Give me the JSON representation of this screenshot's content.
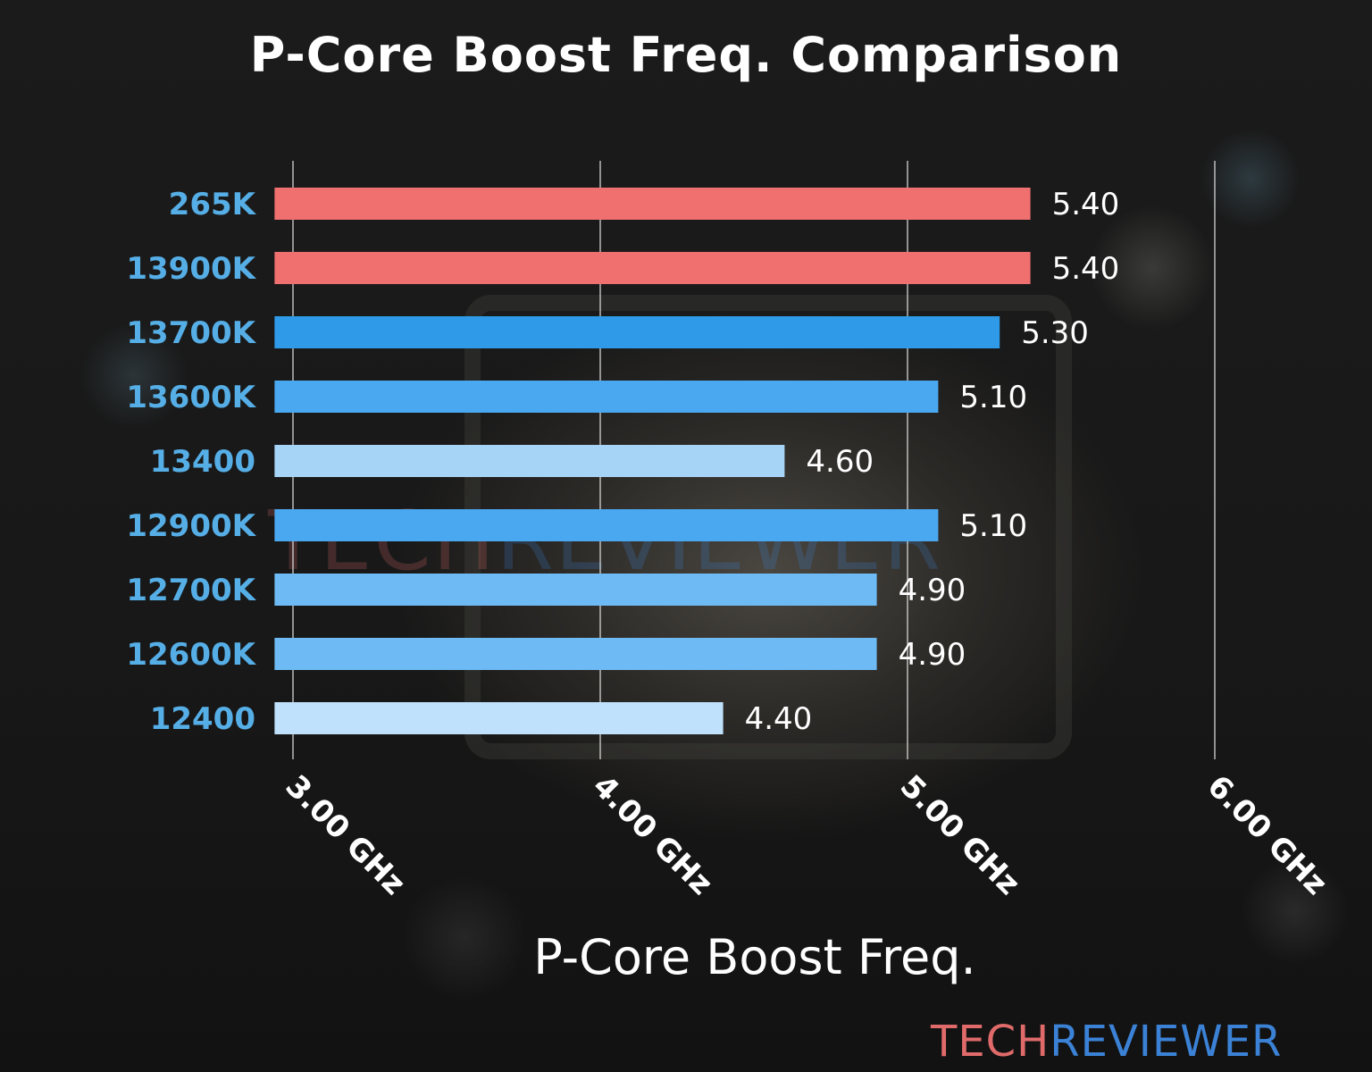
{
  "chart_data": {
    "type": "bar",
    "orientation": "horizontal",
    "title": "P-Core Boost Freq. Comparison",
    "xlabel": "P-Core Boost Freq.",
    "ylabel": "",
    "xlim": [
      2.94,
      6.0
    ],
    "x_ticks": [
      3.0,
      4.0,
      5.0,
      6.0
    ],
    "x_tick_labels": [
      "3.00 GHz",
      "4.00 GHz",
      "5.00 GHz",
      "6.00 GHz"
    ],
    "grid": "vertical",
    "categories": [
      "265K",
      "13900K",
      "13700K",
      "13600K",
      "13400",
      "12900K",
      "12700K",
      "12600K",
      "12400"
    ],
    "values": [
      5.4,
      5.4,
      5.3,
      5.1,
      4.6,
      5.1,
      4.9,
      4.9,
      4.4
    ],
    "value_labels": [
      "5.40",
      "5.40",
      "5.30",
      "5.10",
      "4.60",
      "5.10",
      "4.90",
      "4.90",
      "4.40"
    ],
    "bar_colors": [
      "#f07070",
      "#f07070",
      "#2f9be8",
      "#4aa8f0",
      "#a6d4f7",
      "#4aa8f0",
      "#6dbaf4",
      "#6dbaf4",
      "#bfe1fb"
    ]
  },
  "colors": {
    "category_label": "#56aee6",
    "value_label": "#ffffff",
    "grid": "#d8d8d8",
    "tick_label": "#ffffff",
    "brand_red": "#e06a6a",
    "brand_blue": "#3b82d6"
  },
  "watermark": {
    "part1": "TECH",
    "part2": "REVIEWER"
  },
  "logo": {
    "part1": "TECH",
    "part2": "REVIEWER"
  }
}
